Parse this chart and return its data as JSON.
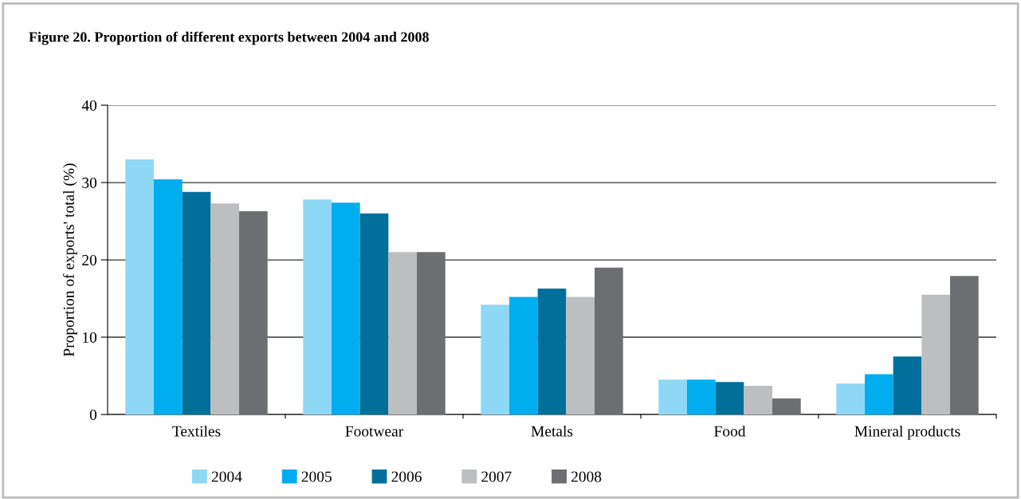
{
  "chart_data": {
    "type": "bar",
    "title": "Figure 20. Proportion of different exports between 2004 and 2008",
    "ylabel": "Proportion of exports' total (%)",
    "categories": [
      "Textiles",
      "Footwear",
      "Metals",
      "Food",
      "Mineral products"
    ],
    "series": [
      {
        "name": "2004",
        "color": "#8fd8f5",
        "values": [
          33.0,
          27.8,
          14.2,
          4.5,
          4.0
        ]
      },
      {
        "name": "2005",
        "color": "#00aeef",
        "values": [
          30.4,
          27.4,
          15.2,
          4.5,
          5.2
        ]
      },
      {
        "name": "2006",
        "color": "#006f9a",
        "values": [
          28.8,
          26.0,
          16.3,
          4.2,
          7.5
        ]
      },
      {
        "name": "2007",
        "color": "#bcbec0",
        "values": [
          27.3,
          21.0,
          15.2,
          3.7,
          15.5
        ]
      },
      {
        "name": "2008",
        "color": "#6d6e71",
        "values": [
          26.3,
          21.0,
          19.0,
          2.1,
          17.9
        ]
      }
    ],
    "ylim": [
      0,
      40
    ],
    "yticks": [
      0,
      10,
      20,
      30,
      40
    ],
    "grid": "y",
    "legend": "bottom"
  }
}
